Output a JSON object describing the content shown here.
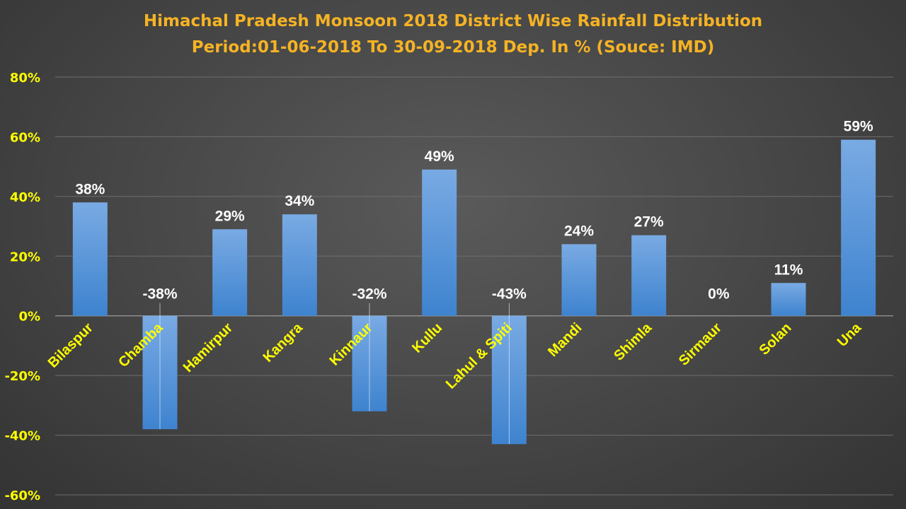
{
  "chart_data": {
    "type": "bar",
    "title": "Himachal Pradesh Monsoon 2018 District Wise Rainfall Distribution",
    "subtitle": "Period:01-06-2018 To 30-09-2018 Dep. In % (Souce: IMD)",
    "categories": [
      "Bilaspur",
      "Chamba",
      "Hamirpur",
      "Kangra",
      "Kinnaur",
      "Kullu",
      "Lahul & Spiti",
      "Mandi",
      "Shimla",
      "Sirmaur",
      "Solan",
      "Una"
    ],
    "values": [
      38,
      -38,
      29,
      34,
      -32,
      49,
      -43,
      24,
      27,
      0,
      11,
      59
    ],
    "data_labels": [
      "38%",
      "-38%",
      "29%",
      "34%",
      "-32%",
      "49%",
      "-43%",
      "24%",
      "27%",
      "0%",
      "11%",
      "59%"
    ],
    "ylim": [
      -60,
      80
    ],
    "yticks": [
      80,
      60,
      40,
      20,
      0,
      -20,
      -40,
      -60
    ],
    "ytick_labels": [
      "80%",
      "60%",
      "40%",
      "20%",
      "0%",
      "-20%",
      "-40%",
      "-60%"
    ],
    "grid": true,
    "legend": "none",
    "colors": {
      "title": "#f5b324",
      "tick": "#ffff00",
      "category": "#ffff00",
      "bar_top": "#79aae3",
      "bar_bottom": "#3e83cf",
      "grid": "#6e6e6e",
      "data_label": "#ffffff"
    }
  }
}
